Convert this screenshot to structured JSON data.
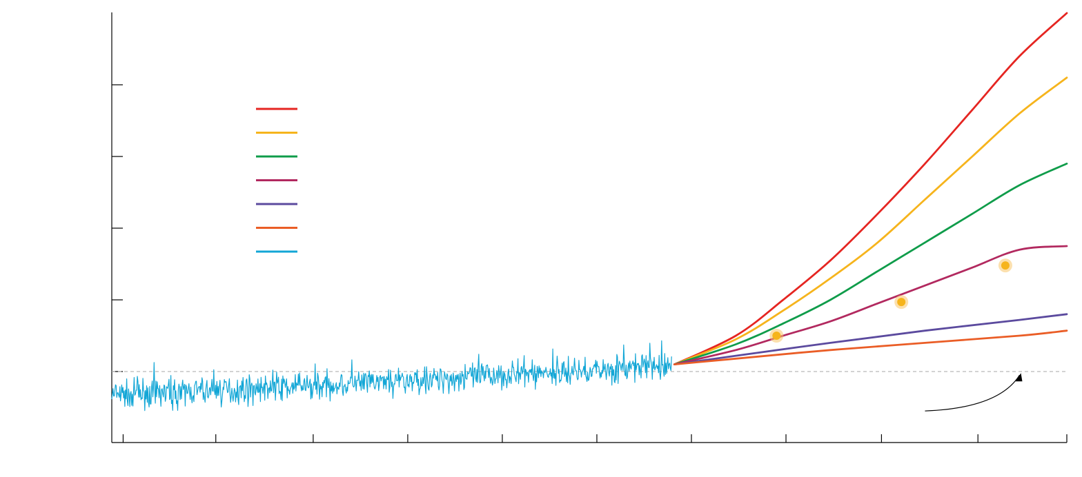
{
  "chart_data": {
    "type": "line",
    "title": "",
    "xlabel": "",
    "ylabel": "",
    "xlim": [
      -2.6,
      7.5
    ],
    "ylim": [
      -1.0,
      5.0
    ],
    "x_ticks": [
      -2.48,
      -1.5,
      -0.47,
      0.53,
      1.53,
      2.53,
      3.53,
      4.53,
      5.54,
      6.56,
      7.5
    ],
    "y_ticks": [
      0,
      1,
      2,
      3,
      4
    ],
    "grid": false,
    "baseline": {
      "y": 0,
      "style": "dashed",
      "color": "#b9b9b9"
    },
    "legend": {
      "placement": "upper-left",
      "entries": [
        {
          "color": "#e52521",
          "label": ""
        },
        {
          "color": "#f6b41c",
          "label": ""
        },
        {
          "color": "#0f9c4a",
          "label": ""
        },
        {
          "color": "#b2295f",
          "label": ""
        },
        {
          "color": "#5b4a9e",
          "label": ""
        },
        {
          "color": "#ea5d26",
          "label": ""
        },
        {
          "color": "#12a6d6",
          "label": ""
        }
      ]
    },
    "series": [
      {
        "color": "#e52521",
        "x": [
          3.35,
          4.0,
          4.5,
          5.0,
          5.5,
          6.0,
          6.5,
          7.0,
          7.5
        ],
        "y": [
          0.1,
          0.5,
          1.0,
          1.55,
          2.2,
          2.9,
          3.65,
          4.4,
          5.0
        ]
      },
      {
        "color": "#f6b41c",
        "x": [
          3.35,
          4.0,
          4.5,
          5.0,
          5.5,
          6.0,
          6.5,
          7.0,
          7.5
        ],
        "y": [
          0.1,
          0.45,
          0.85,
          1.3,
          1.8,
          2.4,
          3.0,
          3.6,
          4.1
        ]
      },
      {
        "color": "#0f9c4a",
        "x": [
          3.35,
          4.0,
          4.5,
          5.0,
          5.5,
          6.0,
          6.5,
          7.0,
          7.5
        ],
        "y": [
          0.1,
          0.38,
          0.67,
          1.0,
          1.4,
          1.8,
          2.2,
          2.6,
          2.9
        ]
      },
      {
        "color": "#b2295f",
        "x": [
          3.35,
          4.0,
          4.5,
          5.0,
          5.5,
          6.0,
          6.5,
          7.0,
          7.5
        ],
        "y": [
          0.1,
          0.3,
          0.5,
          0.7,
          0.95,
          1.2,
          1.45,
          1.7,
          1.75
        ]
      },
      {
        "color": "#5b4a9e",
        "x": [
          3.35,
          4.0,
          5.0,
          6.0,
          7.0,
          7.5
        ],
        "y": [
          0.1,
          0.22,
          0.4,
          0.57,
          0.72,
          0.8
        ]
      },
      {
        "color": "#ea5d26",
        "x": [
          3.35,
          4.0,
          5.0,
          6.0,
          7.0,
          7.5
        ],
        "y": [
          0.1,
          0.18,
          0.3,
          0.4,
          0.5,
          0.57
        ]
      }
    ],
    "observed": {
      "color": "#12a6d6",
      "x_start": -2.6,
      "x_end": 3.32,
      "y_start": -0.33,
      "y_end": 0.08
    },
    "markers": [
      {
        "series": 3,
        "x": 4.43,
        "y": 0.5
      },
      {
        "series": 3,
        "x": 5.75,
        "y": 0.97
      },
      {
        "series": 3,
        "x": 6.85,
        "y": 1.48
      }
    ],
    "annotation_arrow": {
      "from": [
        6.0,
        -0.55
      ],
      "to": [
        7.0,
        -0.05
      ],
      "color": "#000000"
    }
  }
}
